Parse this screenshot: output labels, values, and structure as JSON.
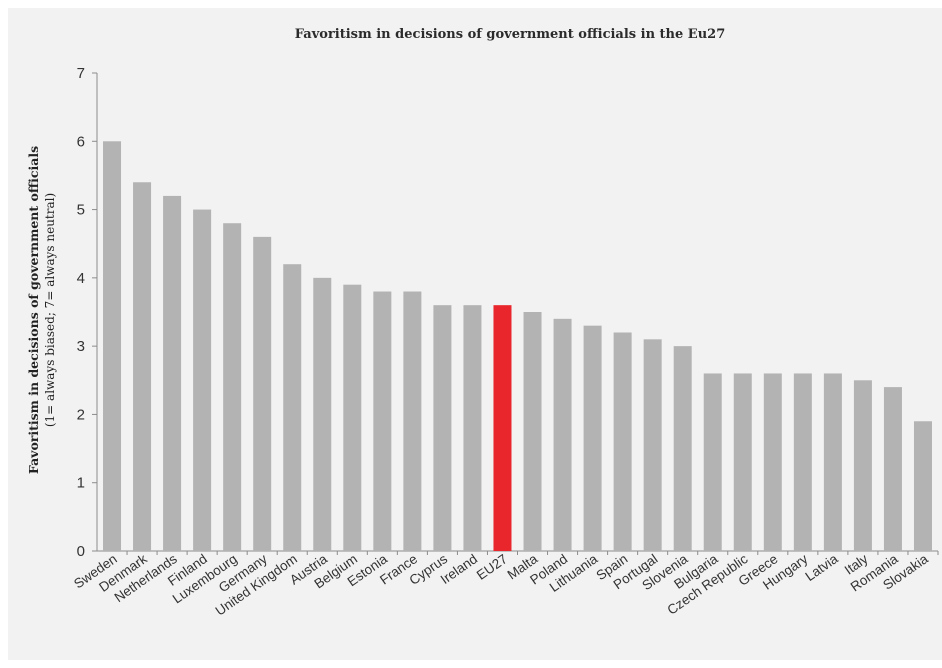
{
  "chart_data": {
    "type": "bar",
    "title": "Favoritism in decisions of government officials in the Eu27",
    "ylabel": "Favoritism in decisions of government officials",
    "ylabel_sub": "(1= always biased; 7= always neutral)",
    "xlabel": "",
    "ylim": [
      0,
      7
    ],
    "yticks": [
      0,
      1,
      2,
      3,
      4,
      5,
      6,
      7
    ],
    "grid": false,
    "legend": "none",
    "bar_color": "#b3b3b3",
    "highlight_color": "#e8262b",
    "highlight_category": "EU27",
    "categories": [
      "Sweden",
      "Denmark",
      "Netherlands",
      "Finland",
      "Luxembourg",
      "Germany",
      "United Kingdom",
      "Austria",
      "Belgium",
      "Estonia",
      "France",
      "Cyprus",
      "Ireland",
      "EU27",
      "Malta",
      "Poland",
      "Lithuania",
      "Spain",
      "Portugal",
      "Slovenia",
      "Bulgaria",
      "Czech Republic",
      "Greece",
      "Hungary",
      "Latvia",
      "Italy",
      "Romania",
      "Slovakia"
    ],
    "values": [
      6.0,
      5.4,
      5.2,
      5.0,
      4.8,
      4.6,
      4.2,
      4.0,
      3.9,
      3.8,
      3.8,
      3.6,
      3.6,
      3.6,
      3.5,
      3.4,
      3.3,
      3.2,
      3.1,
      3.0,
      2.6,
      2.6,
      2.6,
      2.6,
      2.6,
      2.5,
      2.4,
      1.9
    ]
  }
}
